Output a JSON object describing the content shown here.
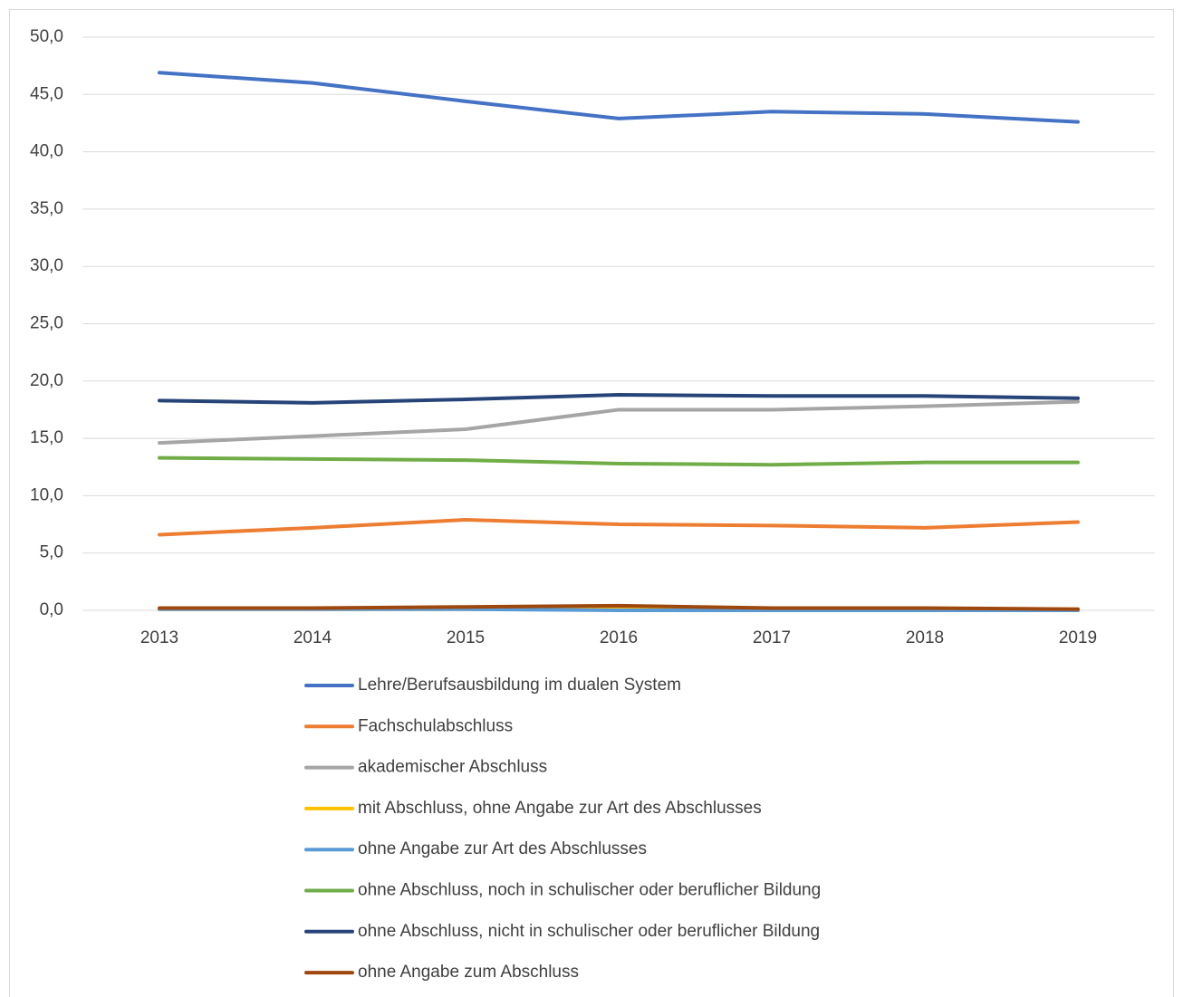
{
  "chart_data": {
    "type": "line",
    "categories": [
      "2013",
      "2014",
      "2015",
      "2016",
      "2017",
      "2018",
      "2019"
    ],
    "ylim": [
      0,
      50
    ],
    "yticks": [
      {
        "value": 0,
        "label": "0,0"
      },
      {
        "value": 5,
        "label": "5,0"
      },
      {
        "value": 10,
        "label": "10,0"
      },
      {
        "value": 15,
        "label": "15,0"
      },
      {
        "value": 20,
        "label": "20,0"
      },
      {
        "value": 25,
        "label": "25,0"
      },
      {
        "value": 30,
        "label": "30,0"
      },
      {
        "value": 35,
        "label": "35,0"
      },
      {
        "value": 40,
        "label": "40,0"
      },
      {
        "value": 45,
        "label": "45,0"
      },
      {
        "value": 50,
        "label": "50,0"
      }
    ],
    "grid": true,
    "legend": "bottom",
    "series": [
      {
        "name": "Lehre/Berufsausbildung im dualen System",
        "color": "#4472c4",
        "values": [
          46.9,
          46.0,
          44.4,
          42.9,
          43.5,
          43.3,
          42.6
        ]
      },
      {
        "name": "Fachschulabschluss",
        "color": "#ed7d31",
        "values": [
          6.6,
          7.2,
          7.9,
          7.5,
          7.4,
          7.2,
          7.7
        ]
      },
      {
        "name": "akademischer Abschluss",
        "color": "#a5a5a5",
        "values": [
          14.6,
          15.2,
          15.8,
          17.5,
          17.5,
          17.8,
          18.2
        ]
      },
      {
        "name": "mit Abschluss, ohne Angabe zur Art des Abschlusses",
        "color": "#ffc000",
        "values": [
          0.1,
          0.1,
          0.1,
          0.1,
          0.1,
          0.1,
          0.1
        ]
      },
      {
        "name": "ohne Angabe zur Art des Abschlusses",
        "color": "#5b9bd5",
        "values": [
          0.1,
          0.1,
          0.1,
          0.0,
          0.0,
          0.0,
          0.0
        ]
      },
      {
        "name": "ohne Abschluss, noch in schulischer oder beruflicher Bildung",
        "color": "#70ad47",
        "values": [
          13.3,
          13.2,
          13.1,
          12.8,
          12.7,
          12.9,
          12.9
        ]
      },
      {
        "name": "ohne Abschluss, nicht in schulischer oder beruflicher Bildung",
        "color": "#264478",
        "values": [
          18.3,
          18.1,
          18.4,
          18.8,
          18.7,
          18.7,
          18.5
        ]
      },
      {
        "name": "ohne Angabe zum Abschluss",
        "color": "#9e480e",
        "values": [
          0.2,
          0.2,
          0.3,
          0.4,
          0.2,
          0.2,
          0.1
        ]
      }
    ]
  }
}
